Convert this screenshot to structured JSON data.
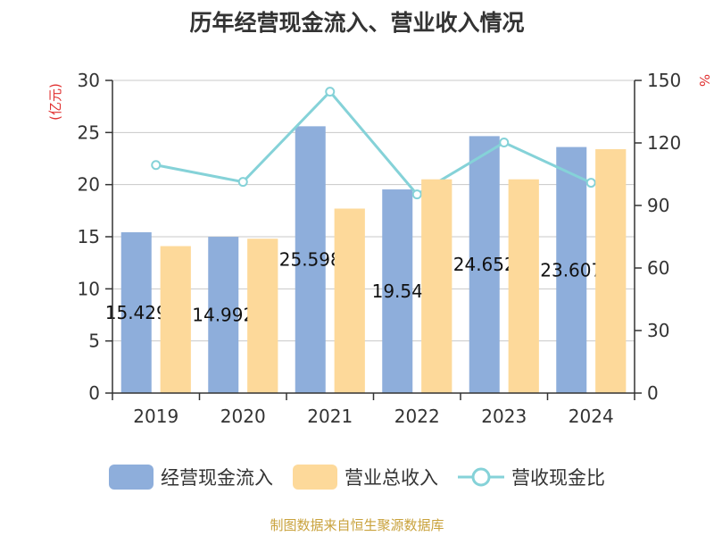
{
  "title": "历年经营现金流入、营业收入情况",
  "source": "制图数据来自恒生聚源数据库",
  "colors": {
    "cash_inflow": "#8eaedb",
    "revenue": "#fdd99a",
    "ratio_line": "#85d2d8",
    "unit_label": "#e03030",
    "axis": "#333333",
    "grid": "#c8c8c8"
  },
  "chart_data": {
    "type": "bar",
    "categories": [
      "2019",
      "2020",
      "2021",
      "2022",
      "2023",
      "2024"
    ],
    "left_axis": {
      "unit": "(亿元)",
      "ylim": [
        0,
        30
      ],
      "ticks": [
        0,
        5,
        10,
        15,
        20,
        25,
        30
      ]
    },
    "right_axis": {
      "unit": "%",
      "ylim": [
        0,
        150
      ],
      "ticks": [
        0,
        30,
        60,
        90,
        120,
        150
      ]
    },
    "series": [
      {
        "name": "经营现金流入",
        "kind": "bar",
        "axis": "left",
        "values": [
          15.429,
          14.992,
          25.598,
          19.54,
          24.652,
          23.607
        ],
        "labels": [
          "15.429",
          "14.992",
          "25.598",
          "19.54",
          "24.652",
          "23.607"
        ]
      },
      {
        "name": "营业总收入",
        "kind": "bar",
        "axis": "left",
        "values": [
          14.1,
          14.8,
          17.7,
          20.5,
          20.5,
          23.4
        ]
      },
      {
        "name": "营收现金比",
        "kind": "line",
        "axis": "right",
        "values": [
          109.4,
          101.3,
          144.6,
          95.3,
          120.2,
          100.9
        ]
      }
    ],
    "grid": true,
    "legend_position": "bottom"
  }
}
